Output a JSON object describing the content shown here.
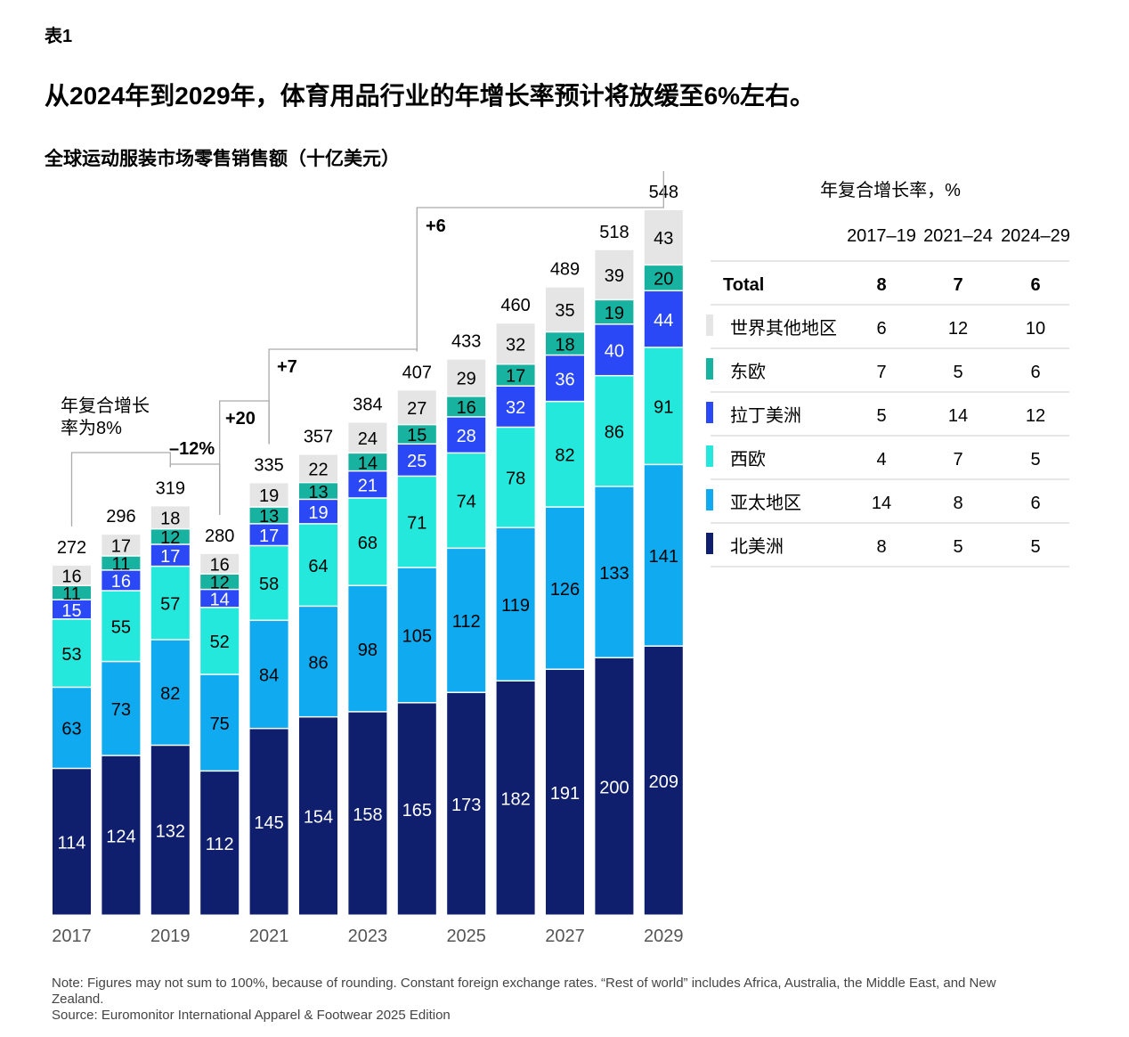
{
  "figure_label": "表1",
  "title": "从2024年到2029年，体育用品行业的年增长率预计将放缓至6%左右。",
  "subtitle": "全球运动服装市场零售销售额（十亿美元）",
  "note": "Note: Figures may not sum to 100%, because of rounding. Constant foreign exchange rates. “Rest of world” includes Africa, Australia, the Middle East, and New Zealand.",
  "source": "Source: Euromonitor International Apparel & Footwear 2025 Edition",
  "chart_data": {
    "type": "bar",
    "stacked": true,
    "categories": [
      "2017",
      "2018",
      "2019",
      "2020",
      "2021",
      "2022",
      "2023",
      "2024",
      "2025",
      "2026",
      "2027",
      "2028",
      "2029"
    ],
    "tick_labels": [
      "2017",
      "",
      "2019",
      "",
      "2021",
      "",
      "2023",
      "",
      "2025",
      "",
      "2027",
      "",
      "2029"
    ],
    "series": [
      {
        "name": "北美洲",
        "color": "#0f1f6e",
        "text_color": "#ffffff",
        "values": [
          114,
          124,
          132,
          112,
          145,
          154,
          158,
          165,
          173,
          182,
          191,
          200,
          209
        ]
      },
      {
        "name": "亚太地区",
        "color": "#0faaf0",
        "text_color": "#000000",
        "values": [
          63,
          73,
          82,
          75,
          84,
          86,
          98,
          105,
          112,
          119,
          126,
          133,
          141
        ]
      },
      {
        "name": "西欧",
        "color": "#24e8dc",
        "text_color": "#000000",
        "values": [
          53,
          55,
          57,
          52,
          58,
          64,
          68,
          71,
          74,
          78,
          82,
          86,
          91
        ]
      },
      {
        "name": "拉丁美洲",
        "color": "#2a48f5",
        "text_color": "#ffffff",
        "values": [
          15,
          16,
          17,
          14,
          17,
          19,
          21,
          25,
          28,
          32,
          36,
          40,
          44
        ]
      },
      {
        "name": "东欧",
        "color": "#17b3a0",
        "text_color": "#000000",
        "values": [
          11,
          11,
          12,
          12,
          13,
          13,
          14,
          15,
          16,
          17,
          18,
          19,
          20
        ]
      },
      {
        "name": "世界其他地区",
        "color": "#e5e5e5",
        "text_color": "#000000",
        "values": [
          16,
          17,
          18,
          16,
          19,
          22,
          24,
          27,
          29,
          32,
          35,
          39,
          43
        ]
      }
    ],
    "totals": [
      272,
      296,
      319,
      280,
      335,
      357,
      384,
      407,
      433,
      460,
      489,
      518,
      548
    ],
    "ylim": [
      0,
      548
    ],
    "grid": false,
    "annotations": [
      {
        "from": "2017",
        "to": "2019",
        "label": "年复合增长\n率为8%"
      },
      {
        "from": "2019",
        "to": "2020",
        "label": "–12%"
      },
      {
        "from": "2020",
        "to": "2021",
        "label": "+20"
      },
      {
        "from": "2021",
        "to": "2024",
        "label": "+7"
      },
      {
        "from": "2024",
        "to": "2029",
        "label": "+6"
      }
    ],
    "table": {
      "title": "年复合增长率，%",
      "columns": [
        "2017–19",
        "2021–24",
        "2024–29"
      ],
      "rows": [
        {
          "label": "Total",
          "values": [
            "8",
            "7",
            "6"
          ],
          "bold": true
        },
        {
          "label": "世界其他地区",
          "values": [
            "6",
            "12",
            "10"
          ],
          "color": "#e5e5e5"
        },
        {
          "label": "东欧",
          "values": [
            "7",
            "5",
            "6"
          ],
          "color": "#17b3a0"
        },
        {
          "label": "拉丁美洲",
          "values": [
            "5",
            "14",
            "12"
          ],
          "color": "#2a48f5"
        },
        {
          "label": "西欧",
          "values": [
            "4",
            "7",
            "5"
          ],
          "color": "#24e8dc"
        },
        {
          "label": "亚太地区",
          "values": [
            "14",
            "8",
            "6"
          ],
          "color": "#0faaf0"
        },
        {
          "label": "北美洲",
          "values": [
            "8",
            "5",
            "5"
          ],
          "color": "#0f1f6e"
        }
      ]
    }
  }
}
